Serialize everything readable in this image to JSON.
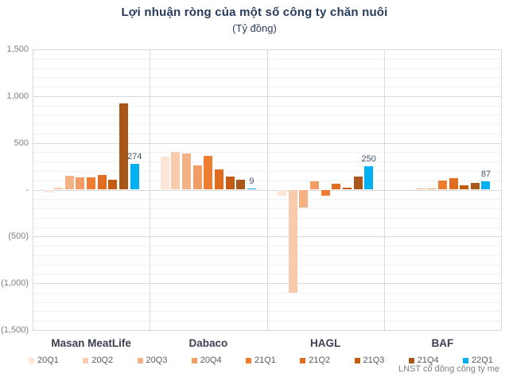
{
  "chart_data": {
    "type": "bar",
    "title": "Lợi nhuận ròng của một số công ty chăn nuôi",
    "subtitle": "(Tỷ đồng)",
    "caption": "LNST cổ đông công ty mẹ",
    "unit": "Tỷ đồng",
    "categories": [
      "Masan MeatLife",
      "Dabaco",
      "HAGL",
      "BAF"
    ],
    "series": [
      {
        "name": "20Q1",
        "color": "#fce4d6",
        "values": [
          -30,
          350,
          -60,
          null
        ]
      },
      {
        "name": "20Q2",
        "color": "#f8cbad",
        "values": [
          25,
          400,
          -1100,
          null
        ]
      },
      {
        "name": "20Q3",
        "color": "#f4b183",
        "values": [
          145,
          390,
          -190,
          10
        ]
      },
      {
        "name": "20Q4",
        "color": "#f19c64",
        "values": [
          130,
          260,
          85,
          15
        ]
      },
      {
        "name": "21Q1",
        "color": "#ed7d31",
        "values": [
          130,
          365,
          -60,
          95
        ]
      },
      {
        "name": "21Q2",
        "color": "#e06d20",
        "values": [
          160,
          215,
          65,
          120
        ]
      },
      {
        "name": "21Q3",
        "color": "#c55a11",
        "values": [
          110,
          140,
          20,
          50
        ]
      },
      {
        "name": "21Q4",
        "color": "#a8561a",
        "values": [
          925,
          110,
          140,
          75
        ]
      },
      {
        "name": "22Q1",
        "color": "#00b0f0",
        "values": [
          274,
          9,
          250,
          87
        ],
        "data_labels": [
          "274",
          "9",
          "250",
          "87"
        ]
      }
    ],
    "ylim": [
      -1500,
      1500
    ],
    "y_ticks": [
      {
        "value": 1500,
        "label": "1,500"
      },
      {
        "value": 1000,
        "label": "1,000"
      },
      {
        "value": 500,
        "label": "500"
      },
      {
        "value": 0,
        "label": "-"
      },
      {
        "value": -500,
        "label": "(500)"
      },
      {
        "value": -1000,
        "label": "(1,000)"
      },
      {
        "value": -1500,
        "label": "(1,500)"
      }
    ],
    "grid": {
      "major_step": 500,
      "minor_step": 100,
      "grid_on": true
    },
    "legend_position": "bottom"
  },
  "colors": {
    "title": "#263c5e",
    "axis_label": "#7f7f7f",
    "category_label": "#3c4150",
    "data_label": "#44546a",
    "legend_label": "#595959",
    "grid_major": "#d9d9d9",
    "grid_minor": "#f2f2f2",
    "background": "#ffffff"
  }
}
